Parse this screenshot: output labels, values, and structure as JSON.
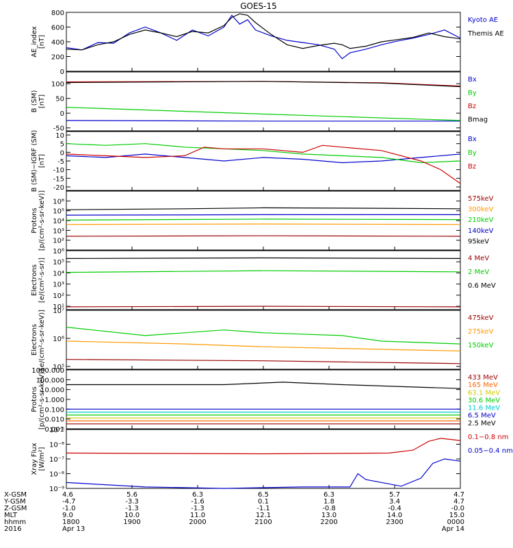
{
  "title": "GOES-15",
  "chart_data": [
    {
      "type": "line",
      "ylabel_lines": [
        "AE_index",
        "[nT]"
      ],
      "ylim": [
        0,
        800
      ],
      "log": false,
      "ticks": [
        "0",
        "200",
        "400",
        "600",
        "800"
      ],
      "tick_values": [
        0,
        200,
        400,
        600,
        800
      ],
      "series": [
        {
          "name": "Kyoto AE",
          "color": "#0000cc",
          "points": [
            [
              0,
              320
            ],
            [
              0.04,
              290
            ],
            [
              0.08,
              390
            ],
            [
              0.12,
              380
            ],
            [
              0.16,
              520
            ],
            [
              0.2,
              600
            ],
            [
              0.24,
              520
            ],
            [
              0.28,
              420
            ],
            [
              0.32,
              560
            ],
            [
              0.36,
              480
            ],
            [
              0.4,
              600
            ],
            [
              0.42,
              760
            ],
            [
              0.44,
              640
            ],
            [
              0.46,
              700
            ],
            [
              0.48,
              560
            ],
            [
              0.52,
              480
            ],
            [
              0.56,
              420
            ],
            [
              0.6,
              390
            ],
            [
              0.64,
              360
            ],
            [
              0.68,
              300
            ],
            [
              0.7,
              170
            ],
            [
              0.72,
              250
            ],
            [
              0.76,
              300
            ],
            [
              0.8,
              360
            ],
            [
              0.84,
              410
            ],
            [
              0.88,
              450
            ],
            [
              0.92,
              500
            ],
            [
              0.96,
              560
            ],
            [
              1.0,
              450
            ]
          ]
        },
        {
          "name": "Themis AE",
          "color": "#000000",
          "points": [
            [
              0,
              300
            ],
            [
              0.04,
              290
            ],
            [
              0.08,
              360
            ],
            [
              0.12,
              400
            ],
            [
              0.16,
              500
            ],
            [
              0.2,
              560
            ],
            [
              0.24,
              520
            ],
            [
              0.28,
              470
            ],
            [
              0.32,
              540
            ],
            [
              0.36,
              520
            ],
            [
              0.4,
              620
            ],
            [
              0.42,
              730
            ],
            [
              0.44,
              780
            ],
            [
              0.46,
              760
            ],
            [
              0.48,
              660
            ],
            [
              0.52,
              500
            ],
            [
              0.56,
              360
            ],
            [
              0.6,
              310
            ],
            [
              0.64,
              350
            ],
            [
              0.68,
              380
            ],
            [
              0.7,
              360
            ],
            [
              0.72,
              310
            ],
            [
              0.76,
              340
            ],
            [
              0.8,
              400
            ],
            [
              0.84,
              430
            ],
            [
              0.88,
              460
            ],
            [
              0.92,
              520
            ],
            [
              0.96,
              470
            ],
            [
              1.0,
              440
            ]
          ]
        }
      ]
    },
    {
      "type": "line",
      "ylabel_lines": [
        "B (SM)",
        "[nT]"
      ],
      "ylim": [
        -60,
        140
      ],
      "log": false,
      "ticks": [
        "-50",
        "0",
        "50",
        "100"
      ],
      "tick_values": [
        -50,
        0,
        50,
        100
      ],
      "series": [
        {
          "name": "Bx",
          "color": "#0000cc",
          "points": [
            [
              0,
              -25
            ],
            [
              0.5,
              -27
            ],
            [
              1.0,
              -27
            ]
          ]
        },
        {
          "name": "By",
          "color": "#00cc00",
          "points": [
            [
              0,
              20
            ],
            [
              0.5,
              -3
            ],
            [
              1.0,
              -25
            ]
          ]
        },
        {
          "name": "Bz",
          "color": "#cc0000",
          "points": [
            [
              0,
              106
            ],
            [
              0.5,
              108
            ],
            [
              0.8,
              103
            ],
            [
              1.0,
              92
            ]
          ]
        },
        {
          "name": "Bmag",
          "color": "#000000",
          "points": [
            [
              0,
              104
            ],
            [
              0.5,
              108
            ],
            [
              0.8,
              102
            ],
            [
              1.0,
              90
            ]
          ]
        }
      ]
    },
    {
      "type": "line",
      "ylabel_lines": [
        "B (SM)−IGRF (SM)",
        "[nT]"
      ],
      "ylim": [
        -22,
        12
      ],
      "log": false,
      "ticks": [
        "-20",
        "-15",
        "-10",
        "-5",
        "0",
        "5",
        "10"
      ],
      "tick_values": [
        -20,
        -15,
        -10,
        -5,
        0,
        5,
        10
      ],
      "series": [
        {
          "name": "Bx",
          "color": "#0000cc",
          "points": [
            [
              0,
              -2
            ],
            [
              0.1,
              -3
            ],
            [
              0.2,
              -1
            ],
            [
              0.3,
              -3
            ],
            [
              0.4,
              -5
            ],
            [
              0.5,
              -3
            ],
            [
              0.6,
              -4
            ],
            [
              0.7,
              -6
            ],
            [
              0.8,
              -5
            ],
            [
              0.9,
              -3
            ],
            [
              1.0,
              -1
            ]
          ]
        },
        {
          "name": "By",
          "color": "#00cc00",
          "points": [
            [
              0,
              5
            ],
            [
              0.1,
              4
            ],
            [
              0.2,
              5
            ],
            [
              0.3,
              3
            ],
            [
              0.4,
              2
            ],
            [
              0.5,
              1
            ],
            [
              0.6,
              -1
            ],
            [
              0.7,
              -2
            ],
            [
              0.8,
              -3
            ],
            [
              0.9,
              -6
            ],
            [
              1.0,
              -5
            ]
          ]
        },
        {
          "name": "Bz",
          "color": "#cc0000",
          "points": [
            [
              0,
              -1
            ],
            [
              0.1,
              -2
            ],
            [
              0.2,
              -3
            ],
            [
              0.3,
              -2
            ],
            [
              0.35,
              3
            ],
            [
              0.4,
              2
            ],
            [
              0.5,
              2
            ],
            [
              0.6,
              0
            ],
            [
              0.65,
              4
            ],
            [
              0.7,
              3
            ],
            [
              0.8,
              1
            ],
            [
              0.9,
              -5
            ],
            [
              0.95,
              -10
            ],
            [
              1.0,
              -18
            ]
          ]
        }
      ]
    },
    {
      "type": "line",
      "ylabel_lines": [
        "Protons",
        "[p/(cm²‑s‑sr‑keV)]"
      ],
      "ylim": [
        1,
        7
      ],
      "log": true,
      "ticks": [
        "10²",
        "10³",
        "10⁴",
        "10⁵",
        "10⁶"
      ],
      "tick_values": [
        2,
        3,
        4,
        5,
        6
      ],
      "series": [
        {
          "name": "575keV",
          "color": "#990000",
          "points": [
            [
              0,
              2.4
            ],
            [
              0.5,
              2.45
            ],
            [
              1.0,
              2.4
            ]
          ]
        },
        {
          "name": "300keV",
          "color": "#ff9900",
          "points": [
            [
              0,
              3.6
            ],
            [
              0.5,
              3.65
            ],
            [
              1.0,
              3.6
            ]
          ]
        },
        {
          "name": "210keV",
          "color": "#00cc00",
          "points": [
            [
              0,
              4.05
            ],
            [
              0.5,
              4.15
            ],
            [
              1.0,
              4.1
            ]
          ]
        },
        {
          "name": "140keV",
          "color": "#0000cc",
          "points": [
            [
              0,
              4.55
            ],
            [
              0.5,
              4.6
            ],
            [
              1.0,
              4.6
            ]
          ]
        },
        {
          "name": "95keV",
          "color": "#000000",
          "points": [
            [
              0,
              5.1
            ],
            [
              0.3,
              5.2
            ],
            [
              0.5,
              5.3
            ],
            [
              0.8,
              5.25
            ],
            [
              1.0,
              5.2
            ]
          ]
        }
      ]
    },
    {
      "type": "line",
      "ylabel_lines": [
        "Electrons",
        "[e/(cm²‑s‑sr)]"
      ],
      "ylim": [
        0.7,
        6
      ],
      "log": true,
      "ticks": [
        "10¹",
        "10²",
        "10³",
        "10⁴",
        "10⁵",
        "10⁶"
      ],
      "tick_values": [
        1,
        2,
        3,
        4,
        5,
        6
      ],
      "series": [
        {
          "name": "4 MeV",
          "color": "#990000",
          "points": [
            [
              0,
              0.95
            ],
            [
              0.5,
              1.0
            ],
            [
              1.0,
              0.95
            ]
          ]
        },
        {
          "name": "2 MeV",
          "color": "#00cc00",
          "points": [
            [
              0,
              4.05
            ],
            [
              0.5,
              4.2
            ],
            [
              1.0,
              4.1
            ]
          ]
        },
        {
          "name": "0.6 MeV",
          "color": "#000000",
          "points": [
            [
              0,
              5.3
            ],
            [
              0.5,
              5.35
            ],
            [
              1.0,
              5.3
            ]
          ]
        }
      ]
    },
    {
      "type": "line",
      "ylabel_lines": [
        "Electrons",
        "[e/(cm²‑s‑sr‑keV)]"
      ],
      "ylim": [
        4.9,
        7
      ],
      "log": true,
      "ticks": [
        "10⁵",
        "10⁶",
        "10⁷"
      ],
      "tick_values": [
        5,
        6,
        7
      ],
      "series": [
        {
          "name": "475keV",
          "color": "#990000",
          "points": [
            [
              0,
              5.25
            ],
            [
              0.5,
              5.2
            ],
            [
              1.0,
              5.1
            ]
          ]
        },
        {
          "name": "275keV",
          "color": "#ff9900",
          "points": [
            [
              0,
              5.9
            ],
            [
              0.3,
              5.8
            ],
            [
              0.5,
              5.7
            ],
            [
              1.0,
              5.55
            ]
          ]
        },
        {
          "name": "150keV",
          "color": "#00cc00",
          "points": [
            [
              0,
              6.4
            ],
            [
              0.2,
              6.1
            ],
            [
              0.3,
              6.2
            ],
            [
              0.4,
              6.3
            ],
            [
              0.5,
              6.2
            ],
            [
              0.7,
              6.1
            ],
            [
              0.8,
              5.9
            ],
            [
              1.0,
              5.8
            ]
          ]
        }
      ]
    },
    {
      "type": "line",
      "ylabel_lines": [
        "Protons",
        "[p/(cm²‑s‑sr‑keV)]"
      ],
      "ylim": [
        -3,
        3
      ],
      "log": true,
      "ticks": [
        "0.001",
        "0.010",
        "0.100",
        "1.000",
        "10.000",
        "100.000",
        "1000.000"
      ],
      "tick_values": [
        -3,
        -2,
        -1,
        0,
        1,
        2,
        3
      ],
      "series": [
        {
          "name": "433 MeV",
          "color": "#990000",
          "points": [
            [
              0,
              -2.5
            ],
            [
              1.0,
              -2.5
            ]
          ]
        },
        {
          "name": "165 MeV",
          "color": "#ff6600",
          "points": [
            [
              0,
              -2.2
            ],
            [
              1.0,
              -2.2
            ]
          ]
        },
        {
          "name": "63.1 MeV",
          "color": "#cccc00",
          "points": [
            [
              0,
              -1.9
            ],
            [
              1.0,
              -1.9
            ]
          ]
        },
        {
          "name": "30.6 MeV",
          "color": "#00cc00",
          "points": [
            [
              0,
              -1.6
            ],
            [
              1.0,
              -1.6
            ]
          ]
        },
        {
          "name": "11.6 MeV",
          "color": "#00cccc",
          "points": [
            [
              0,
              -1.3
            ],
            [
              1.0,
              -1.3
            ]
          ]
        },
        {
          "name": "6.5 MeV",
          "color": "#0000cc",
          "points": [
            [
              0,
              -1.0
            ],
            [
              1.0,
              -1.0
            ]
          ]
        },
        {
          "name": "2.5 MeV",
          "color": "#000000",
          "points": [
            [
              0,
              1.5
            ],
            [
              0.4,
              1.5
            ],
            [
              0.55,
              1.75
            ],
            [
              0.7,
              1.5
            ],
            [
              1.0,
              1.1
            ]
          ]
        }
      ]
    },
    {
      "type": "line",
      "ylabel_lines": [
        "Xray Flux",
        "[W/m²]"
      ],
      "ylim": [
        -9,
        -5
      ],
      "log": true,
      "ticks": [
        "10⁻⁹",
        "10⁻⁸",
        "10⁻⁷",
        "10⁻⁶",
        "10⁻⁵"
      ],
      "tick_values": [
        -9,
        -8,
        -7,
        -6,
        -5
      ],
      "series": [
        {
          "name": "0.1−0.8 nm",
          "color": "#cc0000",
          "points": [
            [
              0,
              -6.6
            ],
            [
              0.5,
              -6.65
            ],
            [
              0.82,
              -6.6
            ],
            [
              0.88,
              -6.4
            ],
            [
              0.92,
              -5.8
            ],
            [
              0.95,
              -5.6
            ],
            [
              1.0,
              -5.75
            ]
          ]
        },
        {
          "name": "0.05−0.4 nm",
          "color": "#0000cc",
          "points": [
            [
              0,
              -8.6
            ],
            [
              0.2,
              -8.9
            ],
            [
              0.4,
              -9.0
            ],
            [
              0.6,
              -8.9
            ],
            [
              0.72,
              -8.9
            ],
            [
              0.74,
              -8.0
            ],
            [
              0.76,
              -8.4
            ],
            [
              0.85,
              -8.85
            ],
            [
              0.9,
              -8.3
            ],
            [
              0.93,
              -7.3
            ],
            [
              0.96,
              -7.0
            ],
            [
              1.0,
              -7.15
            ]
          ]
        }
      ]
    }
  ],
  "footer": {
    "row_labels": [
      "X-GSM",
      "Y-GSM",
      "Z-GSM",
      "MLT",
      "hhmm",
      "2016"
    ],
    "columns": [
      [
        "4.6",
        "-4.7",
        "-1.0",
        "9.0",
        "1800",
        "Apr 13"
      ],
      [
        "5.6",
        "-3.3",
        "-1.3",
        "10.0",
        "1900",
        ""
      ],
      [
        "6.3",
        "-1.6",
        "-1.3",
        "11.0",
        "2000",
        ""
      ],
      [
        "6.5",
        "0.1",
        "-1.1",
        "12.1",
        "2100",
        ""
      ],
      [
        "6.3",
        "1.8",
        "-0.8",
        "13.0",
        "2200",
        ""
      ],
      [
        "5.7",
        "3.4",
        "-0.4",
        "14.0",
        "2300",
        ""
      ],
      [
        "4.7",
        "4.7",
        "-0.0",
        "15.0",
        "0000",
        "Apr 14"
      ]
    ]
  },
  "colors": {
    "axes": "#000000",
    "background": "#ffffff"
  }
}
